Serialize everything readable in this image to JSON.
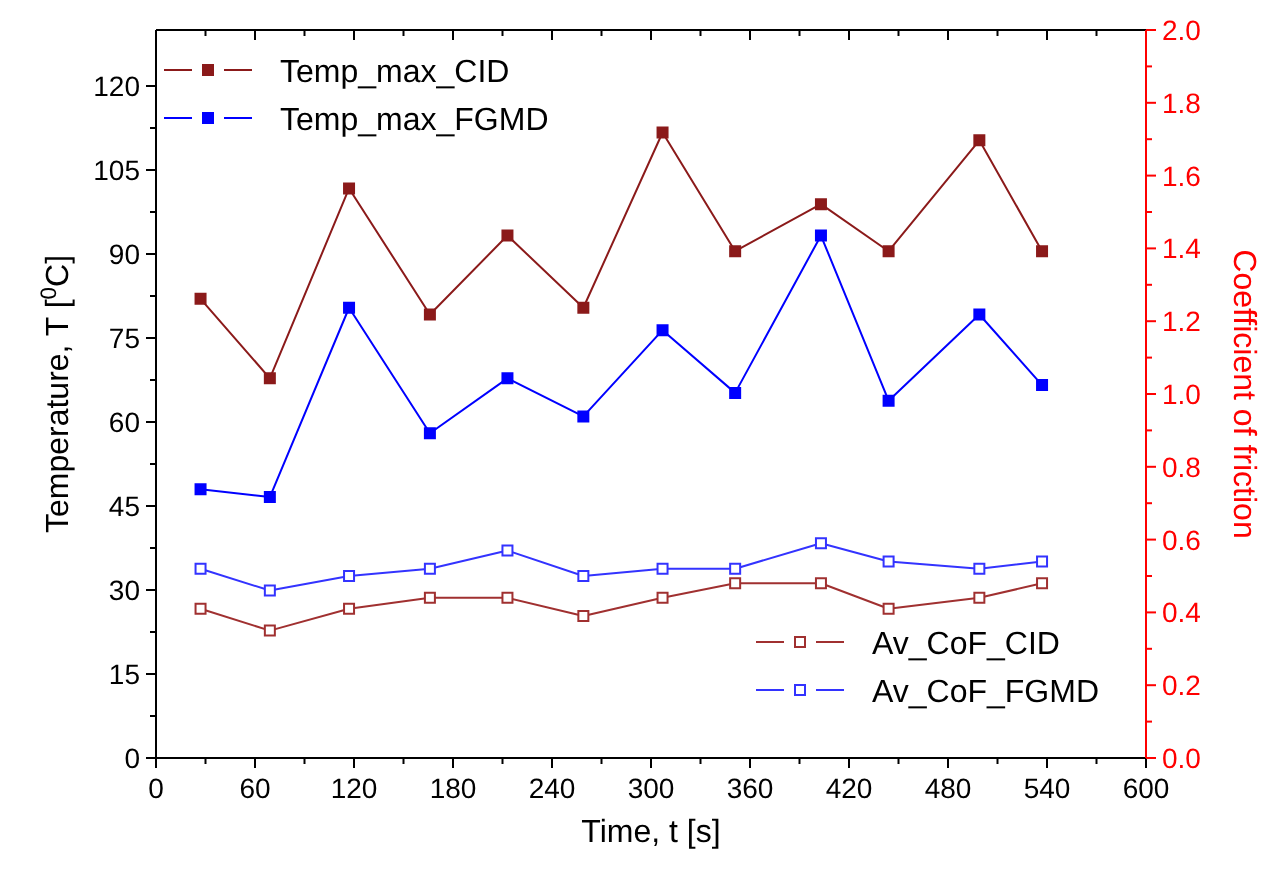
{
  "chart_data": {
    "type": "line",
    "xlabel": "Time, t [s]",
    "ylabel": "Temperature, T [$^{0}$C]",
    "y2label": "Coefficient of friction",
    "xlim": [
      0,
      600
    ],
    "xticks": [
      0,
      60,
      120,
      180,
      240,
      300,
      360,
      420,
      480,
      540,
      600
    ],
    "ylim": [
      0,
      130
    ],
    "yticks": [
      0,
      15,
      30,
      45,
      60,
      75,
      90,
      105,
      120
    ],
    "y2lim": [
      0,
      2
    ],
    "y2ticks": [
      {
        "value": 0,
        "label": "0.0"
      },
      {
        "value": 0.2,
        "label": "0.2"
      },
      {
        "value": 0.4,
        "label": "0.4"
      },
      {
        "value": 0.6,
        "label": "0.6"
      },
      {
        "value": 0.8,
        "label": "0.8"
      },
      {
        "value": 1,
        "label": "1.0"
      },
      {
        "value": 1.2,
        "label": "1.2"
      },
      {
        "value": 1.4,
        "label": "1.4"
      },
      {
        "value": 1.6,
        "label": "1.6"
      },
      {
        "value": 1.8,
        "label": "1.8"
      },
      {
        "value": 2,
        "label": "2.0"
      }
    ],
    "x": [
      27,
      69,
      117,
      166,
      213,
      259,
      307,
      351,
      403,
      444,
      499,
      537
    ],
    "marker": "square",
    "grid": false,
    "legend": "top left",
    "series": [
      {
        "name": "Temp_max_CID",
        "color": "#8b1a1a",
        "values": [
          82,
          67.8,
          101.7,
          79.2,
          93.3,
          80.4,
          111.7,
          90.5,
          98.9,
          90.5,
          110.3,
          90.5
        ]
      },
      {
        "name": "Temp_max_FGMD",
        "color": "#0000ff",
        "values": [
          48,
          46.6,
          80.4,
          58,
          67.8,
          61,
          76.4,
          65.2,
          93.3,
          63.8,
          79.2,
          66.6
        ]
      },
      {
        "name": "Av_CoF_CID",
        "color": "#a03030",
        "axis": "y2",
        "values": [
          0.41,
          0.35,
          0.41,
          0.44,
          0.44,
          0.39,
          0.44,
          0.48,
          0.48,
          0.41,
          0.44,
          0.48
        ]
      },
      {
        "name": "Av_CoF_FGMD",
        "color": "#3333ff",
        "axis": "y2",
        "values": [
          0.52,
          0.46,
          0.5,
          0.52,
          0.57,
          0.5,
          0.52,
          0.52,
          0.59,
          0.54,
          0.52,
          0.54
        ]
      }
    ]
  }
}
